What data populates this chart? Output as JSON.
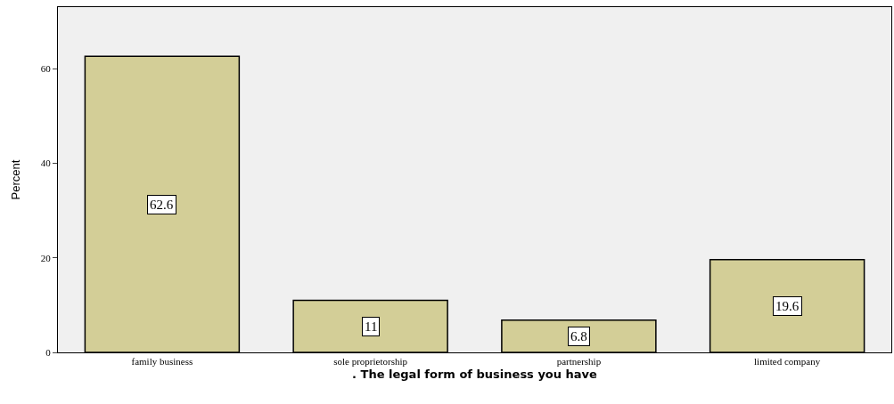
{
  "chart_data": {
    "type": "bar",
    "xlabel": ". The legal form of business you have",
    "ylabel": "Percent",
    "categories": [
      "family business",
      "sole proprietorship",
      "partnership",
      "limited company"
    ],
    "values": [
      62.6,
      11,
      6.8,
      19.6
    ],
    "color": "#d3ce97",
    "data_labels": true,
    "ylim": [
      0,
      73
    ],
    "yticks": [
      0,
      20,
      40,
      60
    ],
    "grid": false,
    "legend": false
  }
}
